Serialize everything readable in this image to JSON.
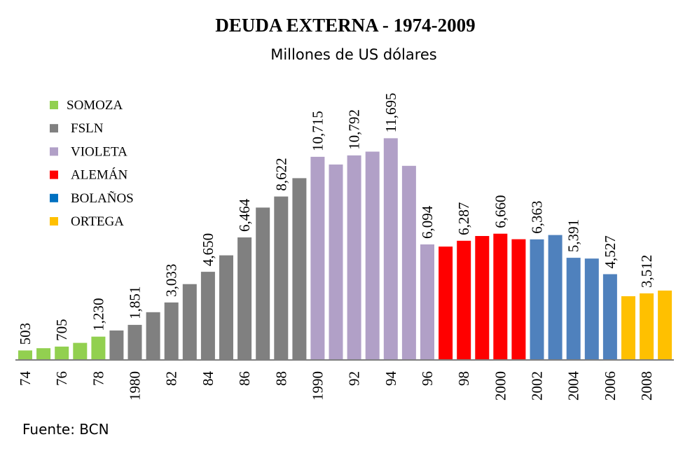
{
  "chart_data": {
    "type": "bar",
    "title": "DEUDA EXTERNA - 1974-2009",
    "subtitle": "Millones de US dólares",
    "source": "Fuente: BCN",
    "xlabel": "",
    "ylabel": "",
    "ylim": [
      0,
      12000
    ],
    "grid": false,
    "legend_position": "top-left",
    "years": [
      1974,
      1975,
      1976,
      1977,
      1978,
      1979,
      1980,
      1981,
      1982,
      1983,
      1984,
      1985,
      1986,
      1987,
      1988,
      1989,
      1990,
      1991,
      1992,
      1993,
      1994,
      1995,
      1996,
      1997,
      1998,
      1999,
      2000,
      2001,
      2002,
      2003,
      2004,
      2005,
      2006,
      2007,
      2008,
      2009
    ],
    "tick_labels": [
      "74",
      "",
      "76",
      "",
      "78",
      "",
      "1980",
      "",
      "82",
      "",
      "84",
      "",
      "86",
      "",
      "88",
      "",
      "1990",
      "",
      "92",
      "",
      "94",
      "",
      "96",
      "",
      "98",
      "",
      "2000",
      "",
      "2002",
      "",
      "2004",
      "",
      "2006",
      "",
      "2008",
      ""
    ],
    "values": [
      503,
      620,
      705,
      900,
      1230,
      1555,
      1851,
      2520,
      3033,
      4000,
      4650,
      5520,
      6464,
      8040,
      8622,
      9590,
      10715,
      10310,
      10792,
      10990,
      11695,
      10240,
      6094,
      5980,
      6287,
      6540,
      6660,
      6370,
      6363,
      6590,
      5391,
      5350,
      4527,
      3360,
      3512,
      3660
    ],
    "data_labels": [
      "503",
      "",
      "705",
      "",
      "1,230",
      "",
      "1,851",
      "",
      "3,033",
      "",
      "4,650",
      "",
      "6,464",
      "",
      "8,622",
      "",
      "10,715",
      "",
      "10,792",
      "",
      "11,695",
      "",
      "6,094",
      "",
      "6,287",
      "",
      "6,660",
      "",
      "6,363",
      "",
      "5,391",
      "",
      "4,527",
      "",
      "3,512",
      ""
    ],
    "groups": [
      "SOMOZA",
      "SOMOZA",
      "SOMOZA",
      "SOMOZA",
      "SOMOZA",
      "FSLN",
      "FSLN",
      "FSLN",
      "FSLN",
      "FSLN",
      "FSLN",
      "FSLN",
      "FSLN",
      "FSLN",
      "FSLN",
      "FSLN",
      "VIOLETA",
      "VIOLETA",
      "VIOLETA",
      "VIOLETA",
      "VIOLETA",
      "VIOLETA",
      "VIOLETA",
      "ALEMÁN",
      "ALEMÁN",
      "ALEMÁN",
      "ALEMÁN",
      "ALEMÁN",
      "BOLAÑOS",
      "BOLAÑOS",
      "BOLAÑOS",
      "BOLAÑOS",
      "BOLAÑOS",
      "ORTEGA",
      "ORTEGA",
      "ORTEGA"
    ],
    "legend": [
      {
        "name": "SOMOZA",
        "color": "#92D050",
        "bar_color": "#92D050"
      },
      {
        "name": "FSLN",
        "color": "#808080",
        "bar_color": "#808080"
      },
      {
        "name": "VIOLETA",
        "color": "#B1A0C7",
        "bar_color": "#B1A0C7"
      },
      {
        "name": "ALEMÁN",
        "color": "#FF0000",
        "bar_color": "#FF0000"
      },
      {
        "name": "BOLAÑOS",
        "color": "#0070C0",
        "bar_color": "#4F81BD"
      },
      {
        "name": "ORTEGA",
        "color": "#FFC000",
        "bar_color": "#FFC000"
      }
    ],
    "axis_color": "#7F7F7F"
  }
}
